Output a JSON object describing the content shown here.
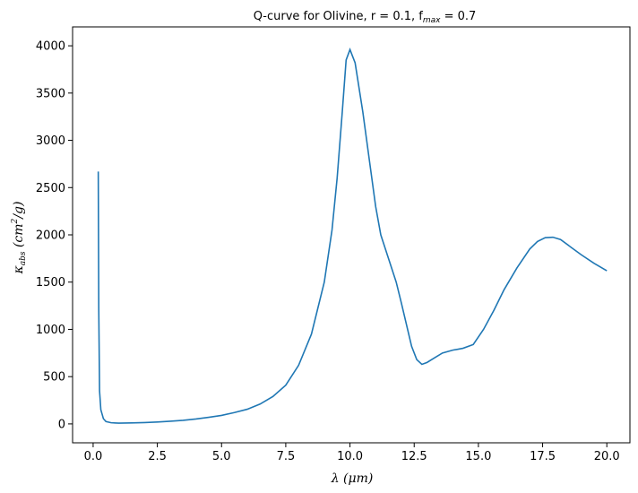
{
  "chart_data": {
    "type": "line",
    "title": "Q-curve for Olivine, r = 0.1, f",
    "title_sub": "max",
    "title_suffix": " = 0.7",
    "xlabel": "λ (μm)",
    "ylabel": "κabs (cm²/g)",
    "ylabel_main": "κ",
    "ylabel_sub": "abs",
    "ylabel_unit": " (cm",
    "ylabel_sup": "2",
    "ylabel_tail": "/g)",
    "xlim": [
      -0.8,
      20.9
    ],
    "ylim": [
      -200,
      4200
    ],
    "xticks": [
      0.0,
      2.5,
      5.0,
      7.5,
      10.0,
      12.5,
      15.0,
      17.5,
      20.0
    ],
    "xtick_labels": [
      "0.0",
      "2.5",
      "5.0",
      "7.5",
      "10.0",
      "12.5",
      "15.0",
      "17.5",
      "20.0"
    ],
    "yticks": [
      0,
      500,
      1000,
      1500,
      2000,
      2500,
      3000,
      3500,
      4000
    ],
    "ytick_labels": [
      "0",
      "500",
      "1000",
      "1500",
      "2000",
      "2500",
      "3000",
      "3500",
      "4000"
    ],
    "grid": false,
    "line_color": "#1f77b4",
    "series": [
      {
        "x": [
          0.2,
          0.22,
          0.25,
          0.3,
          0.4,
          0.5,
          0.7,
          1.0,
          1.5,
          2.0,
          2.5,
          3.0,
          3.5,
          4.0,
          4.5,
          5.0,
          5.5,
          6.0,
          6.5,
          7.0,
          7.5,
          8.0,
          8.5,
          9.0,
          9.3,
          9.5,
          9.7,
          9.85,
          10.0,
          10.2,
          10.5,
          10.8,
          11.0,
          11.2,
          11.5,
          11.8,
          12.0,
          12.2,
          12.4,
          12.6,
          12.8,
          13.0,
          13.3,
          13.6,
          14.0,
          14.4,
          14.8,
          15.2,
          15.6,
          16.0,
          16.5,
          17.0,
          17.3,
          17.6,
          17.9,
          18.2,
          18.6,
          19.0,
          19.5,
          20.0
        ],
        "y": [
          2670,
          1200,
          350,
          150,
          55,
          25,
          12,
          8,
          10,
          14,
          20,
          28,
          38,
          52,
          70,
          90,
          120,
          155,
          210,
          290,
          410,
          620,
          950,
          1500,
          2050,
          2600,
          3300,
          3850,
          3960,
          3820,
          3300,
          2700,
          2300,
          2000,
          1750,
          1500,
          1280,
          1050,
          820,
          680,
          630,
          650,
          700,
          750,
          780,
          800,
          840,
          1000,
          1200,
          1420,
          1650,
          1850,
          1930,
          1970,
          1975,
          1950,
          1870,
          1790,
          1700,
          1620
        ]
      }
    ]
  }
}
